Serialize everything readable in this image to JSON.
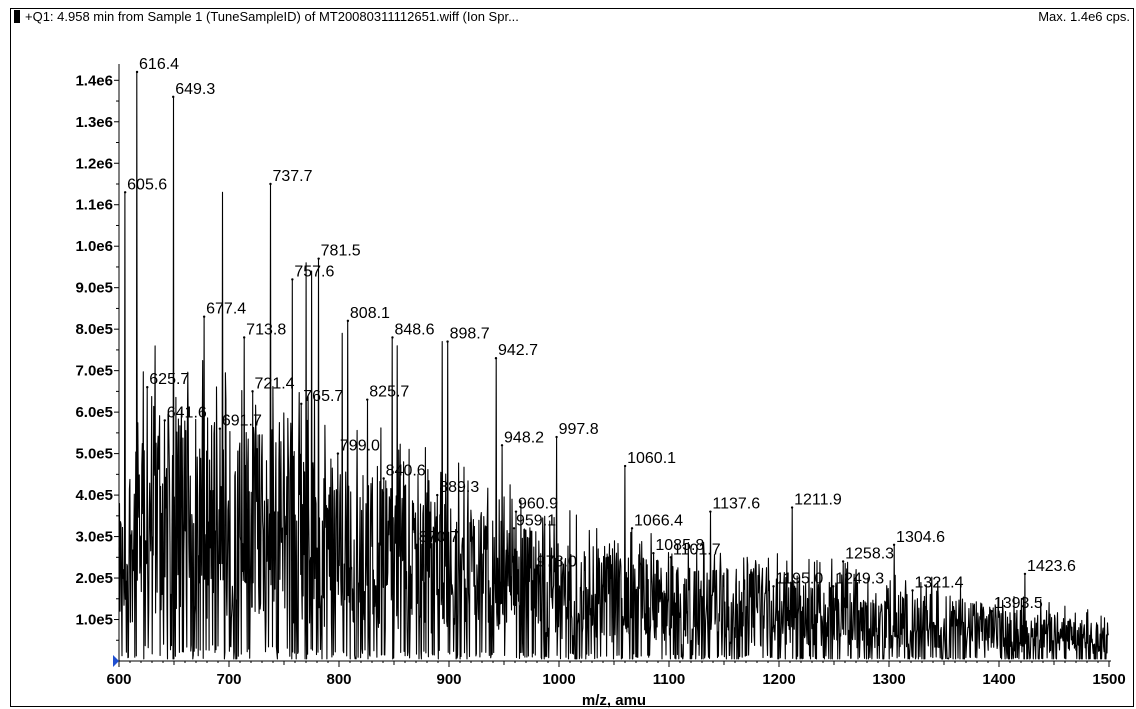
{
  "header": {
    "title": "+Q1: 4.958 min from Sample 1 (TuneSampleID) of MT20080311112651.wiff (Ion Spr...",
    "max": "Max. 1.4e6 cps."
  },
  "chart_data": {
    "type": "line",
    "title": "",
    "xlabel": "m/z, amu",
    "ylabel": "",
    "xlim": [
      600,
      1500
    ],
    "ylim": [
      0,
      1420000
    ],
    "xticks": [
      600,
      700,
      800,
      900,
      1000,
      1100,
      1200,
      1300,
      1400,
      1500
    ],
    "xtick_labels": [
      "600",
      "700",
      "800",
      "900",
      "1000",
      "1100",
      "1200",
      "1300",
      "1400",
      "1500"
    ],
    "yticks": [
      100000,
      200000,
      300000,
      400000,
      500000,
      600000,
      700000,
      800000,
      900000,
      1000000,
      1100000,
      1200000,
      1300000,
      1400000
    ],
    "ytick_labels": [
      "1.0e5",
      "2.0e5",
      "3.0e5",
      "4.0e5",
      "5.0e5",
      "6.0e5",
      "7.0e5",
      "8.0e5",
      "9.0e5",
      "1.0e6",
      "1.1e6",
      "1.2e6",
      "1.3e6",
      "1.4e6"
    ],
    "grid": false,
    "legend": "none",
    "peaks": [
      {
        "x": 605.6,
        "y": 1130000,
        "label": "605.6"
      },
      {
        "x": 616.4,
        "y": 1420000,
        "label": "616.4"
      },
      {
        "x": 625.7,
        "y": 660000,
        "label": "625.7"
      },
      {
        "x": 641.6,
        "y": 580000,
        "label": "641.6"
      },
      {
        "x": 649.3,
        "y": 1360000,
        "label": "649.3"
      },
      {
        "x": 677.4,
        "y": 830000,
        "label": "677.4"
      },
      {
        "x": 691.7,
        "y": 560000,
        "label": "691.7"
      },
      {
        "x": 694.0,
        "y": 1130000,
        "label": ""
      },
      {
        "x": 713.8,
        "y": 780000,
        "label": "713.8"
      },
      {
        "x": 721.4,
        "y": 650000,
        "label": "721.4"
      },
      {
        "x": 737.7,
        "y": 1150000,
        "label": "737.7"
      },
      {
        "x": 757.6,
        "y": 920000,
        "label": "757.6"
      },
      {
        "x": 765.7,
        "y": 620000,
        "label": "765.7"
      },
      {
        "x": 770.0,
        "y": 960000,
        "label": ""
      },
      {
        "x": 775.0,
        "y": 940000,
        "label": ""
      },
      {
        "x": 781.5,
        "y": 970000,
        "label": "781.5"
      },
      {
        "x": 799.0,
        "y": 500000,
        "label": "799.0"
      },
      {
        "x": 803.0,
        "y": 790000,
        "label": ""
      },
      {
        "x": 808.1,
        "y": 820000,
        "label": "808.1"
      },
      {
        "x": 825.7,
        "y": 630000,
        "label": "825.7"
      },
      {
        "x": 840.6,
        "y": 440000,
        "label": "840.6"
      },
      {
        "x": 848.6,
        "y": 780000,
        "label": "848.6"
      },
      {
        "x": 853.0,
        "y": 760000,
        "label": ""
      },
      {
        "x": 870.7,
        "y": 280000,
        "label": "870.7"
      },
      {
        "x": 889.3,
        "y": 400000,
        "label": "889.3"
      },
      {
        "x": 894.0,
        "y": 770000,
        "label": ""
      },
      {
        "x": 898.7,
        "y": 770000,
        "label": "898.7"
      },
      {
        "x": 942.7,
        "y": 730000,
        "label": "942.7"
      },
      {
        "x": 948.2,
        "y": 520000,
        "label": "948.2"
      },
      {
        "x": 959.1,
        "y": 320000,
        "label": "959.1"
      },
      {
        "x": 960.9,
        "y": 360000,
        "label": "960.9"
      },
      {
        "x": 978.0,
        "y": 220000,
        "label": "978.0"
      },
      {
        "x": 997.8,
        "y": 540000,
        "label": "997.8"
      },
      {
        "x": 1060.1,
        "y": 470000,
        "label": "1060.1"
      },
      {
        "x": 1066.4,
        "y": 320000,
        "label": "1066.4"
      },
      {
        "x": 1085.8,
        "y": 260000,
        "label": "1085.8"
      },
      {
        "x": 1101.7,
        "y": 250000,
        "label": "1101.7"
      },
      {
        "x": 1137.6,
        "y": 360000,
        "label": "1137.6"
      },
      {
        "x": 1195.0,
        "y": 180000,
        "label": "1195.0"
      },
      {
        "x": 1211.9,
        "y": 370000,
        "label": "1211.9"
      },
      {
        "x": 1249.3,
        "y": 180000,
        "label": "1249.3"
      },
      {
        "x": 1258.3,
        "y": 240000,
        "label": "1258.3"
      },
      {
        "x": 1304.6,
        "y": 280000,
        "label": "1304.6"
      },
      {
        "x": 1321.4,
        "y": 170000,
        "label": "1321.4"
      },
      {
        "x": 1393.5,
        "y": 120000,
        "label": "1393.5"
      },
      {
        "x": 1423.6,
        "y": 210000,
        "label": "1423.6"
      }
    ],
    "baseline": [
      {
        "x": 600,
        "y": 250000
      },
      {
        "x": 620,
        "y": 420000
      },
      {
        "x": 650,
        "y": 400000
      },
      {
        "x": 700,
        "y": 390000
      },
      {
        "x": 750,
        "y": 360000
      },
      {
        "x": 800,
        "y": 320000
      },
      {
        "x": 850,
        "y": 290000
      },
      {
        "x": 900,
        "y": 260000
      },
      {
        "x": 950,
        "y": 230000
      },
      {
        "x": 1000,
        "y": 200000
      },
      {
        "x": 1100,
        "y": 160000
      },
      {
        "x": 1200,
        "y": 140000
      },
      {
        "x": 1300,
        "y": 120000
      },
      {
        "x": 1400,
        "y": 90000
      },
      {
        "x": 1500,
        "y": 60000
      }
    ]
  }
}
